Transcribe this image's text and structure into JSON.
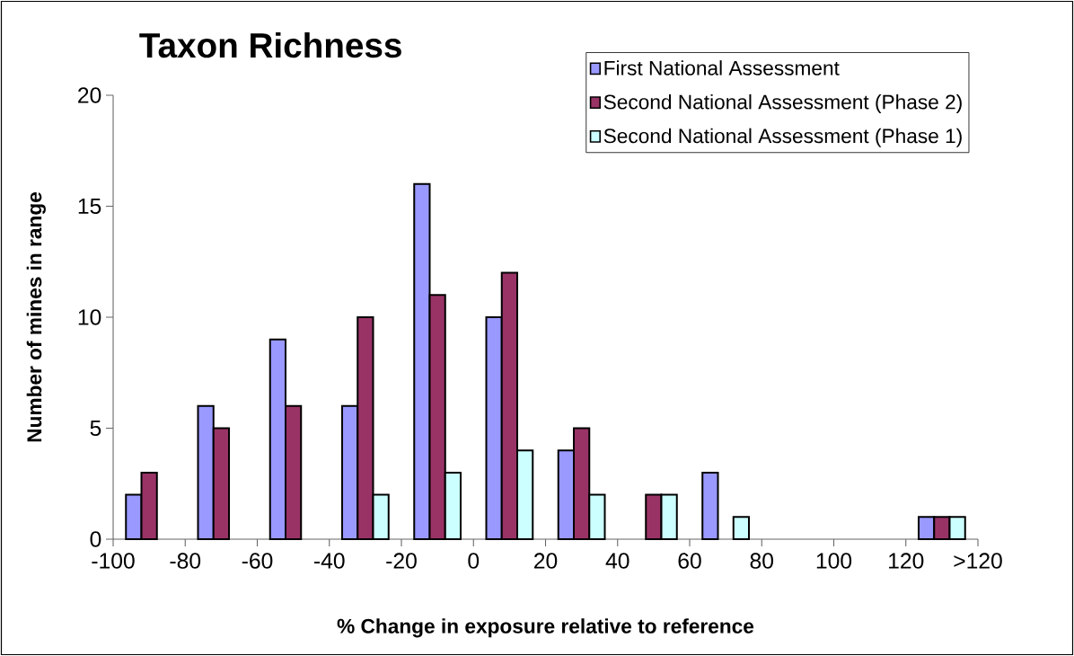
{
  "chart_data": {
    "type": "bar",
    "title": "Taxon Richness",
    "xlabel": "% Change in exposure relative to reference",
    "ylabel": "Number of mines in range",
    "x": [
      -90,
      -70,
      -50,
      -30,
      -10,
      10,
      30,
      50,
      70,
      90,
      110,
      130
    ],
    "series": [
      {
        "name": "First National Assessment",
        "color": "#9999ff",
        "values": [
          2,
          6,
          9,
          6,
          16,
          10,
          4,
          null,
          3,
          null,
          null,
          1
        ]
      },
      {
        "name": "Second National Assessment (Phase 2)",
        "color": "#993366",
        "values": [
          3,
          5,
          6,
          10,
          11,
          12,
          5,
          2,
          null,
          null,
          null,
          1
        ]
      },
      {
        "name": "Second National Assessment (Phase 1)",
        "color": "#ccffff",
        "values": [
          null,
          null,
          null,
          2,
          3,
          4,
          2,
          2,
          1,
          null,
          null,
          1
        ]
      }
    ],
    "xlim": [
      -100,
      140
    ],
    "xticks": [
      -100,
      -80,
      -60,
      -40,
      -20,
      0,
      20,
      40,
      60,
      80,
      100,
      120,
      {
        "value": 140,
        "label": ">120"
      }
    ],
    "ylim": [
      0,
      20
    ],
    "yticks": [
      0,
      5,
      10,
      15,
      20
    ],
    "grid": false,
    "legend": "top right"
  }
}
